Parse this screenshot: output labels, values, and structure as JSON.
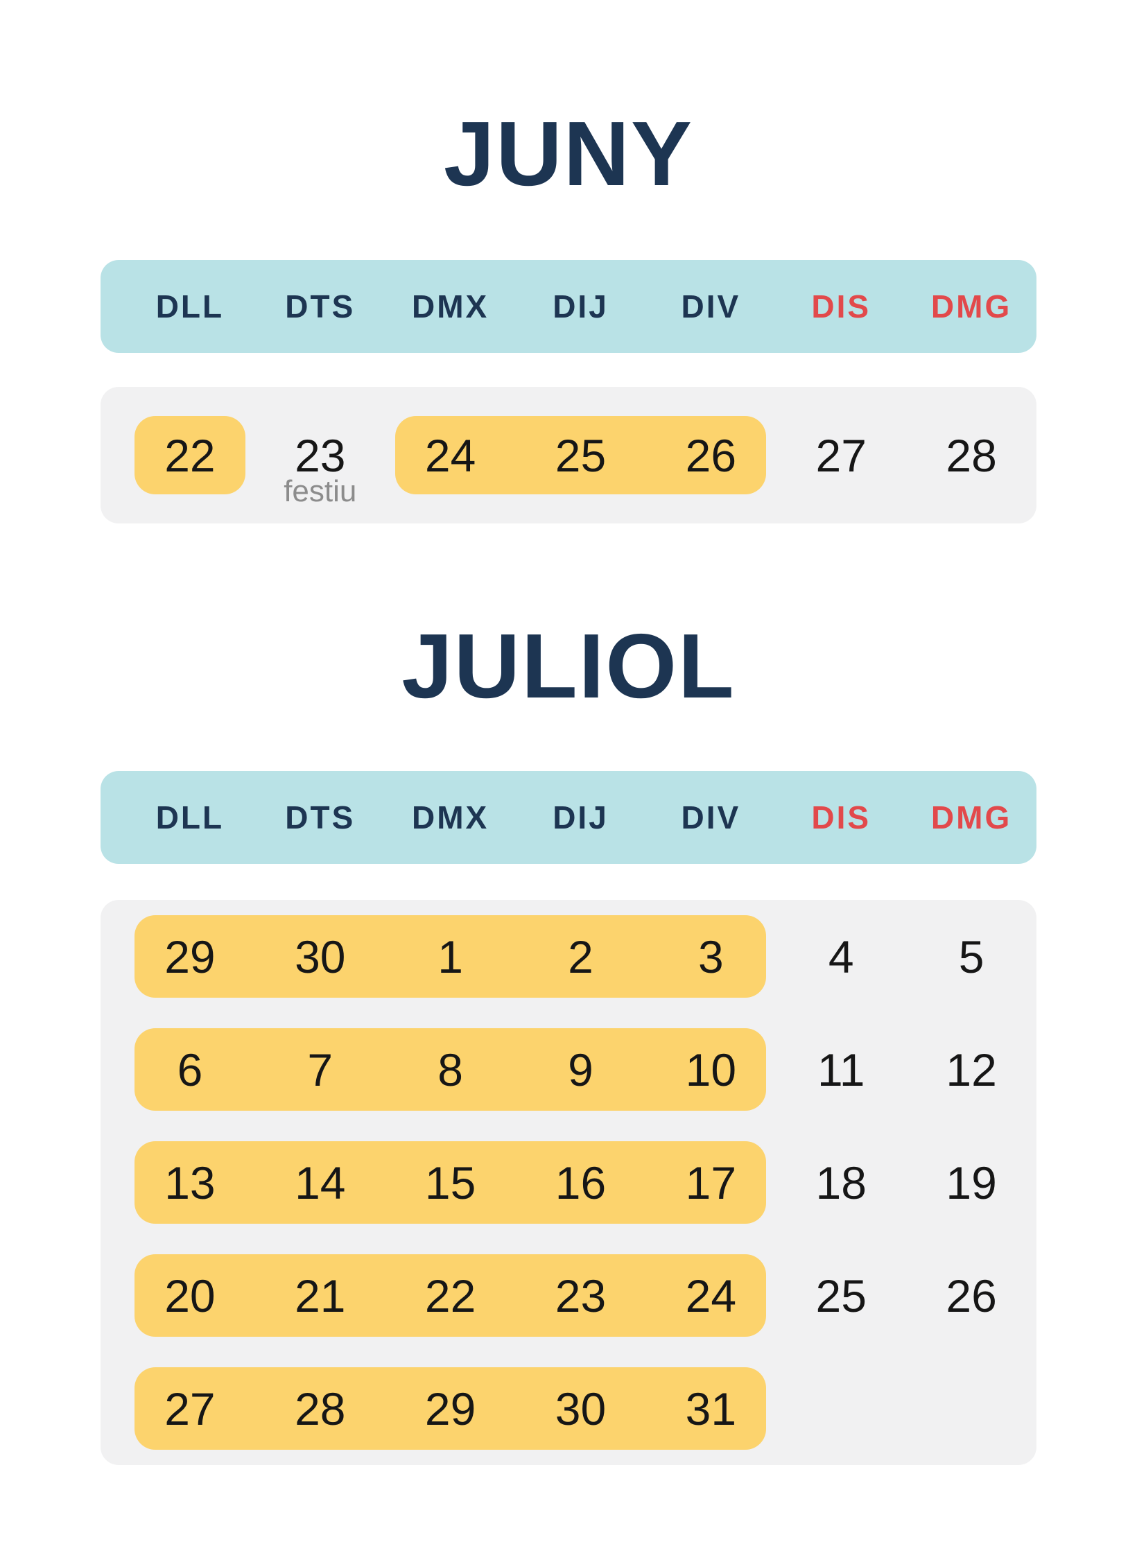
{
  "colors": {
    "page_bg": "#ffffff",
    "navy": "#1d3552",
    "red": "#e2494b",
    "teal": "#b9e2e6",
    "panel_gray": "#f1f1f2",
    "highlight_yellow": "#fcd36d",
    "day_text": "#161616",
    "note_gray": "#8c8c8c"
  },
  "weekday_headers": [
    {
      "label": "DLL",
      "weekend": false
    },
    {
      "label": "DTS",
      "weekend": false
    },
    {
      "label": "DMX",
      "weekend": false
    },
    {
      "label": "DIJ",
      "weekend": false
    },
    {
      "label": "DIV",
      "weekend": false
    },
    {
      "label": "DIS",
      "weekend": true
    },
    {
      "label": "DMG",
      "weekend": true
    }
  ],
  "months": [
    {
      "title": "JUNY",
      "weeks": [
        {
          "days": [
            {
              "label": "22",
              "col": 1,
              "highlight": true
            },
            {
              "label": "23",
              "col": 2,
              "highlight": false,
              "note": "festiu"
            },
            {
              "label": "24",
              "col": 3,
              "highlight": true
            },
            {
              "label": "25",
              "col": 4,
              "highlight": true
            },
            {
              "label": "26",
              "col": 5,
              "highlight": true
            },
            {
              "label": "27",
              "col": 6,
              "highlight": false
            },
            {
              "label": "28",
              "col": 7,
              "highlight": false
            }
          ]
        }
      ]
    },
    {
      "title": "JULIOL",
      "weeks": [
        {
          "days": [
            {
              "label": "29",
              "col": 1,
              "highlight": true
            },
            {
              "label": "30",
              "col": 2,
              "highlight": true
            },
            {
              "label": "1",
              "col": 3,
              "highlight": true
            },
            {
              "label": "2",
              "col": 4,
              "highlight": true
            },
            {
              "label": "3",
              "col": 5,
              "highlight": true
            },
            {
              "label": "4",
              "col": 6,
              "highlight": false
            },
            {
              "label": "5",
              "col": 7,
              "highlight": false
            }
          ]
        },
        {
          "days": [
            {
              "label": "6",
              "col": 1,
              "highlight": true
            },
            {
              "label": "7",
              "col": 2,
              "highlight": true
            },
            {
              "label": "8",
              "col": 3,
              "highlight": true
            },
            {
              "label": "9",
              "col": 4,
              "highlight": true
            },
            {
              "label": "10",
              "col": 5,
              "highlight": true
            },
            {
              "label": "11",
              "col": 6,
              "highlight": false
            },
            {
              "label": "12",
              "col": 7,
              "highlight": false
            }
          ]
        },
        {
          "days": [
            {
              "label": "13",
              "col": 1,
              "highlight": true
            },
            {
              "label": "14",
              "col": 2,
              "highlight": true
            },
            {
              "label": "15",
              "col": 3,
              "highlight": true
            },
            {
              "label": "16",
              "col": 4,
              "highlight": true
            },
            {
              "label": "17",
              "col": 5,
              "highlight": true
            },
            {
              "label": "18",
              "col": 6,
              "highlight": false
            },
            {
              "label": "19",
              "col": 7,
              "highlight": false
            }
          ]
        },
        {
          "days": [
            {
              "label": "20",
              "col": 1,
              "highlight": true
            },
            {
              "label": "21",
              "col": 2,
              "highlight": true
            },
            {
              "label": "22",
              "col": 3,
              "highlight": true
            },
            {
              "label": "23",
              "col": 4,
              "highlight": true
            },
            {
              "label": "24",
              "col": 5,
              "highlight": true
            },
            {
              "label": "25",
              "col": 6,
              "highlight": false
            },
            {
              "label": "26",
              "col": 7,
              "highlight": false
            }
          ]
        },
        {
          "days": [
            {
              "label": "27",
              "col": 1,
              "highlight": true
            },
            {
              "label": "28",
              "col": 2,
              "highlight": true
            },
            {
              "label": "29",
              "col": 3,
              "highlight": true
            },
            {
              "label": "30",
              "col": 4,
              "highlight": true
            },
            {
              "label": "31",
              "col": 5,
              "highlight": true
            }
          ]
        }
      ]
    }
  ]
}
